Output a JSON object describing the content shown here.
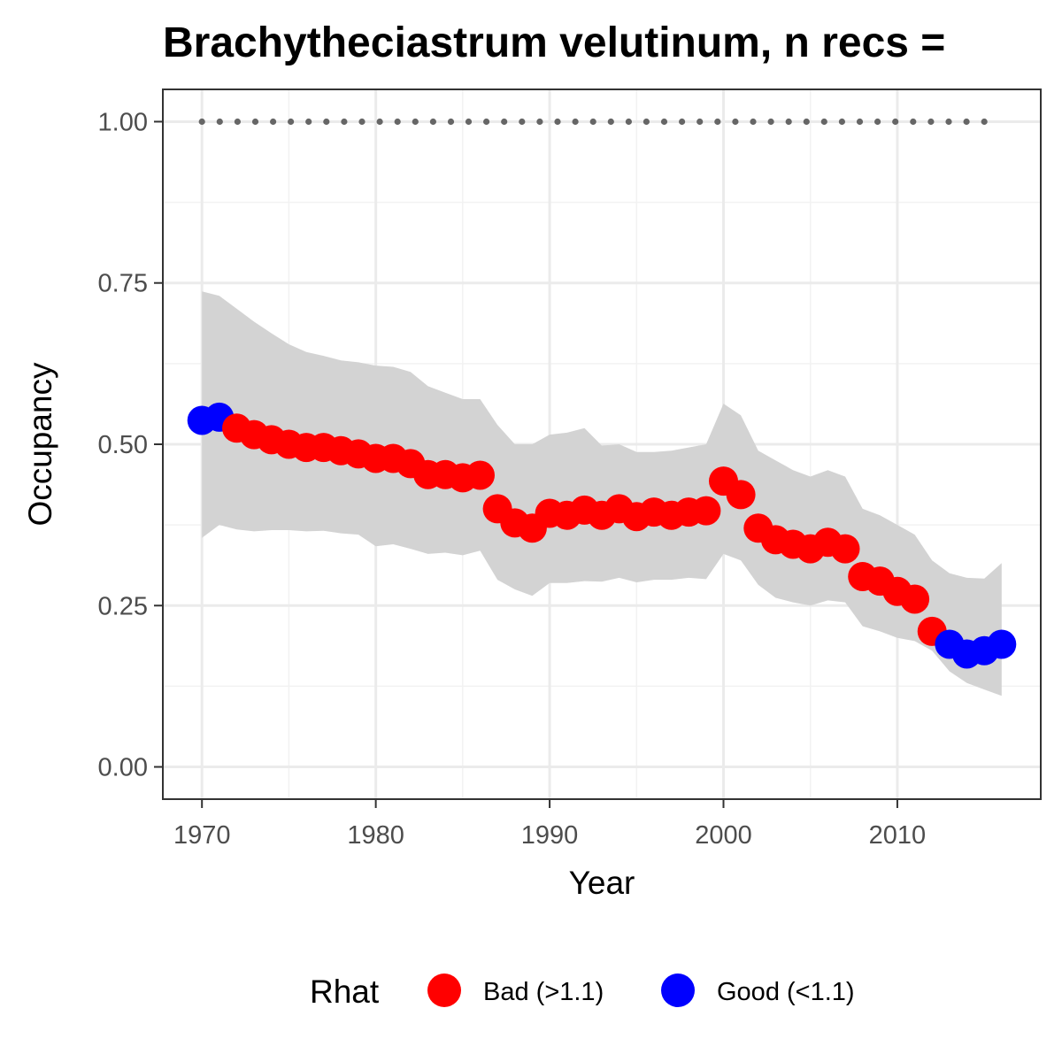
{
  "chart_data": {
    "type": "line",
    "title": "Brachytheciastrum velutinum, n recs =",
    "xlabel": "Year",
    "ylabel": "Occupancy",
    "xlim": [
      1967.75,
      2018.25
    ],
    "ylim": [
      -0.05,
      1.05
    ],
    "x_ticks": [
      1970,
      1980,
      1990,
      2000,
      2010
    ],
    "x_tick_labels": [
      "1970",
      "1980",
      "1990",
      "2000",
      "2010"
    ],
    "y_ticks": [
      0,
      0.25,
      0.5,
      0.75,
      1.0
    ],
    "y_tick_labels": [
      "0.00",
      "0.25",
      "0.50",
      "0.75",
      "1.00"
    ],
    "grid": true,
    "legend": {
      "title": "Rhat",
      "position": "bottom",
      "entries": [
        {
          "label": "Bad (>1.1)",
          "color": "#ff0000"
        },
        {
          "label": "Good (<1.1)",
          "color": "#0000ff"
        }
      ]
    },
    "colors": {
      "bad": "#ff0000",
      "good": "#0000ff",
      "band": "#d3d3d3",
      "reference": "#666666"
    },
    "years": [
      1970,
      1971,
      1972,
      1973,
      1974,
      1975,
      1976,
      1977,
      1978,
      1979,
      1980,
      1981,
      1982,
      1983,
      1984,
      1985,
      1986,
      1987,
      1988,
      1989,
      1990,
      1991,
      1992,
      1993,
      1994,
      1995,
      1996,
      1997,
      1998,
      1999,
      2000,
      2001,
      2002,
      2003,
      2004,
      2005,
      2006,
      2007,
      2008,
      2009,
      2010,
      2011,
      2012,
      2013,
      2014,
      2015,
      2016
    ],
    "occupancy": [
      0.537,
      0.542,
      0.525,
      0.515,
      0.507,
      0.5,
      0.495,
      0.495,
      0.49,
      0.485,
      0.478,
      0.478,
      0.47,
      0.453,
      0.453,
      0.448,
      0.452,
      0.4,
      0.378,
      0.37,
      0.393,
      0.39,
      0.398,
      0.39,
      0.4,
      0.388,
      0.395,
      0.39,
      0.395,
      0.397,
      0.443,
      0.422,
      0.37,
      0.352,
      0.345,
      0.338,
      0.348,
      0.338,
      0.295,
      0.288,
      0.272,
      0.26,
      0.21,
      0.19,
      0.175,
      0.18,
      0.19
    ],
    "rhat": [
      "Good",
      "Good",
      "Bad",
      "Bad",
      "Bad",
      "Bad",
      "Bad",
      "Bad",
      "Bad",
      "Bad",
      "Bad",
      "Bad",
      "Bad",
      "Bad",
      "Bad",
      "Bad",
      "Bad",
      "Bad",
      "Bad",
      "Bad",
      "Bad",
      "Bad",
      "Bad",
      "Bad",
      "Bad",
      "Bad",
      "Bad",
      "Bad",
      "Bad",
      "Bad",
      "Bad",
      "Bad",
      "Bad",
      "Bad",
      "Bad",
      "Bad",
      "Bad",
      "Bad",
      "Bad",
      "Bad",
      "Bad",
      "Bad",
      "Bad",
      "Good",
      "Good",
      "Good",
      "Good"
    ],
    "upper": [
      0.737,
      0.73,
      0.71,
      0.69,
      0.672,
      0.655,
      0.643,
      0.637,
      0.63,
      0.627,
      0.622,
      0.62,
      0.612,
      0.59,
      0.58,
      0.57,
      0.57,
      0.53,
      0.5,
      0.5,
      0.515,
      0.518,
      0.525,
      0.498,
      0.5,
      0.488,
      0.488,
      0.49,
      0.495,
      0.5,
      0.563,
      0.545,
      0.49,
      0.475,
      0.46,
      0.45,
      0.46,
      0.45,
      0.4,
      0.39,
      0.375,
      0.36,
      0.32,
      0.3,
      0.293,
      0.292,
      0.316
    ],
    "lower": [
      0.355,
      0.375,
      0.368,
      0.365,
      0.367,
      0.367,
      0.365,
      0.366,
      0.362,
      0.36,
      0.342,
      0.345,
      0.338,
      0.33,
      0.332,
      0.328,
      0.335,
      0.29,
      0.275,
      0.265,
      0.285,
      0.285,
      0.288,
      0.287,
      0.293,
      0.286,
      0.29,
      0.29,
      0.293,
      0.291,
      0.33,
      0.32,
      0.282,
      0.262,
      0.255,
      0.25,
      0.258,
      0.255,
      0.218,
      0.21,
      0.2,
      0.195,
      0.18,
      0.148,
      0.13,
      0.12,
      0.11
    ],
    "reference_line": {
      "y": 1.0,
      "x_start": 1970,
      "x_end": 2015,
      "style": "dotted"
    }
  }
}
